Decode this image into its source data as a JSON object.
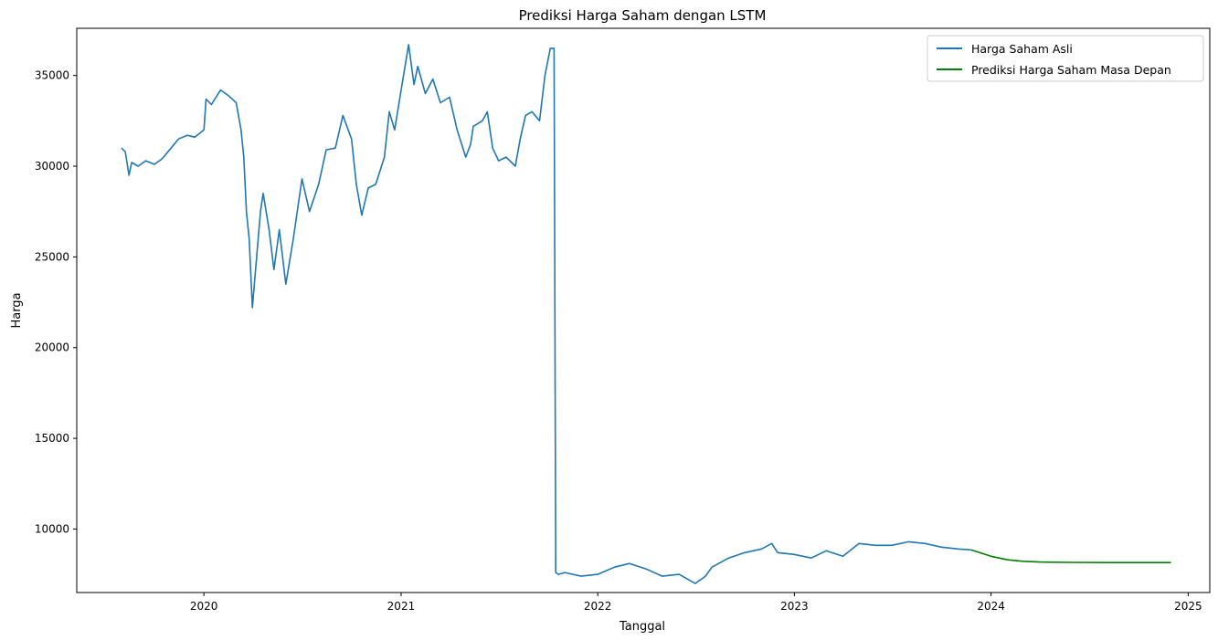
{
  "chart_data": {
    "type": "line",
    "title": "Prediksi Harga Saham dengan LSTM",
    "xlabel": "Tanggal",
    "ylabel": "Harga",
    "x_axis_type": "date",
    "xlim": [
      "2019-05-10",
      "2025-02-10"
    ],
    "ylim": [
      6500,
      37600
    ],
    "xticks": [
      {
        "date": "2020-01-01",
        "label": "2020"
      },
      {
        "date": "2021-01-01",
        "label": "2021"
      },
      {
        "date": "2022-01-01",
        "label": "2022"
      },
      {
        "date": "2023-01-01",
        "label": "2023"
      },
      {
        "date": "2024-01-01",
        "label": "2024"
      },
      {
        "date": "2025-01-01",
        "label": "2025"
      }
    ],
    "yticks": [
      {
        "value": 10000,
        "label": "10000"
      },
      {
        "value": 15000,
        "label": "15000"
      },
      {
        "value": 20000,
        "label": "20000"
      },
      {
        "value": 25000,
        "label": "25000"
      },
      {
        "value": 30000,
        "label": "30000"
      },
      {
        "value": 35000,
        "label": "35000"
      }
    ],
    "legend_position": "top-right",
    "grid": false,
    "series": [
      {
        "name": "Harga Saham Asli",
        "color": "#1f77b4",
        "points": [
          [
            "2019-08-01",
            31000
          ],
          [
            "2019-08-08",
            30800
          ],
          [
            "2019-08-15",
            29500
          ],
          [
            "2019-08-20",
            30200
          ],
          [
            "2019-09-01",
            30000
          ],
          [
            "2019-09-15",
            30300
          ],
          [
            "2019-10-01",
            30100
          ],
          [
            "2019-10-15",
            30400
          ],
          [
            "2019-11-01",
            31000
          ],
          [
            "2019-11-15",
            31500
          ],
          [
            "2019-12-01",
            31700
          ],
          [
            "2019-12-15",
            31600
          ],
          [
            "2020-01-01",
            32000
          ],
          [
            "2020-01-05",
            33700
          ],
          [
            "2020-01-15",
            33400
          ],
          [
            "2020-02-01",
            34200
          ],
          [
            "2020-02-15",
            33900
          ],
          [
            "2020-03-01",
            33500
          ],
          [
            "2020-03-10",
            32000
          ],
          [
            "2020-03-15",
            30500
          ],
          [
            "2020-03-20",
            27500
          ],
          [
            "2020-03-25",
            26000
          ],
          [
            "2020-03-31",
            22200
          ],
          [
            "2020-04-05",
            24000
          ],
          [
            "2020-04-15",
            27500
          ],
          [
            "2020-04-20",
            28500
          ],
          [
            "2020-05-01",
            26500
          ],
          [
            "2020-05-10",
            24300
          ],
          [
            "2020-05-20",
            26500
          ],
          [
            "2020-06-01",
            23500
          ],
          [
            "2020-06-15",
            26000
          ],
          [
            "2020-07-01",
            29300
          ],
          [
            "2020-07-15",
            27500
          ],
          [
            "2020-08-01",
            29000
          ],
          [
            "2020-08-15",
            30900
          ],
          [
            "2020-09-01",
            31000
          ],
          [
            "2020-09-15",
            32800
          ],
          [
            "2020-10-01",
            31500
          ],
          [
            "2020-10-10",
            29000
          ],
          [
            "2020-10-20",
            27300
          ],
          [
            "2020-11-01",
            28800
          ],
          [
            "2020-11-15",
            29000
          ],
          [
            "2020-12-01",
            30500
          ],
          [
            "2020-12-10",
            33000
          ],
          [
            "2020-12-20",
            32000
          ],
          [
            "2021-01-01",
            34200
          ],
          [
            "2021-01-15",
            36700
          ],
          [
            "2021-01-25",
            34500
          ],
          [
            "2021-02-01",
            35500
          ],
          [
            "2021-02-15",
            34000
          ],
          [
            "2021-03-01",
            34800
          ],
          [
            "2021-03-15",
            33500
          ],
          [
            "2021-04-01",
            33800
          ],
          [
            "2021-04-15",
            32000
          ],
          [
            "2021-05-01",
            30500
          ],
          [
            "2021-05-10",
            31200
          ],
          [
            "2021-05-15",
            32200
          ],
          [
            "2021-06-01",
            32500
          ],
          [
            "2021-06-10",
            33000
          ],
          [
            "2021-06-20",
            31000
          ],
          [
            "2021-07-01",
            30300
          ],
          [
            "2021-07-15",
            30500
          ],
          [
            "2021-08-01",
            30000
          ],
          [
            "2021-08-10",
            31500
          ],
          [
            "2021-08-20",
            32800
          ],
          [
            "2021-09-01",
            33000
          ],
          [
            "2021-09-15",
            32500
          ],
          [
            "2021-09-25",
            35000
          ],
          [
            "2021-10-05",
            36500
          ],
          [
            "2021-10-12",
            36500
          ],
          [
            "2021-10-15",
            7600
          ],
          [
            "2021-10-20",
            7500
          ],
          [
            "2021-11-01",
            7600
          ],
          [
            "2021-12-01",
            7400
          ],
          [
            "2022-01-01",
            7500
          ],
          [
            "2022-02-01",
            7900
          ],
          [
            "2022-03-01",
            8100
          ],
          [
            "2022-04-01",
            7800
          ],
          [
            "2022-05-01",
            7400
          ],
          [
            "2022-06-01",
            7500
          ],
          [
            "2022-07-01",
            7000
          ],
          [
            "2022-07-20",
            7400
          ],
          [
            "2022-08-01",
            7900
          ],
          [
            "2022-09-01",
            8400
          ],
          [
            "2022-10-01",
            8700
          ],
          [
            "2022-11-01",
            8900
          ],
          [
            "2022-11-20",
            9200
          ],
          [
            "2022-12-01",
            8700
          ],
          [
            "2023-01-01",
            8600
          ],
          [
            "2023-02-01",
            8400
          ],
          [
            "2023-03-01",
            8800
          ],
          [
            "2023-04-01",
            8500
          ],
          [
            "2023-05-01",
            9200
          ],
          [
            "2023-06-01",
            9100
          ],
          [
            "2023-07-01",
            9100
          ],
          [
            "2023-08-01",
            9300
          ],
          [
            "2023-09-01",
            9200
          ],
          [
            "2023-10-01",
            9000
          ],
          [
            "2023-11-01",
            8900
          ],
          [
            "2023-11-25",
            8850
          ]
        ]
      },
      {
        "name": "Prediksi Harga Saham Masa Depan",
        "color": "#008000",
        "points": [
          [
            "2023-11-25",
            8850
          ],
          [
            "2024-01-01",
            8500
          ],
          [
            "2024-02-01",
            8300
          ],
          [
            "2024-03-01",
            8220
          ],
          [
            "2024-04-01",
            8180
          ],
          [
            "2024-06-01",
            8160
          ],
          [
            "2024-08-01",
            8150
          ],
          [
            "2024-10-01",
            8150
          ],
          [
            "2024-11-30",
            8150
          ]
        ]
      }
    ]
  }
}
